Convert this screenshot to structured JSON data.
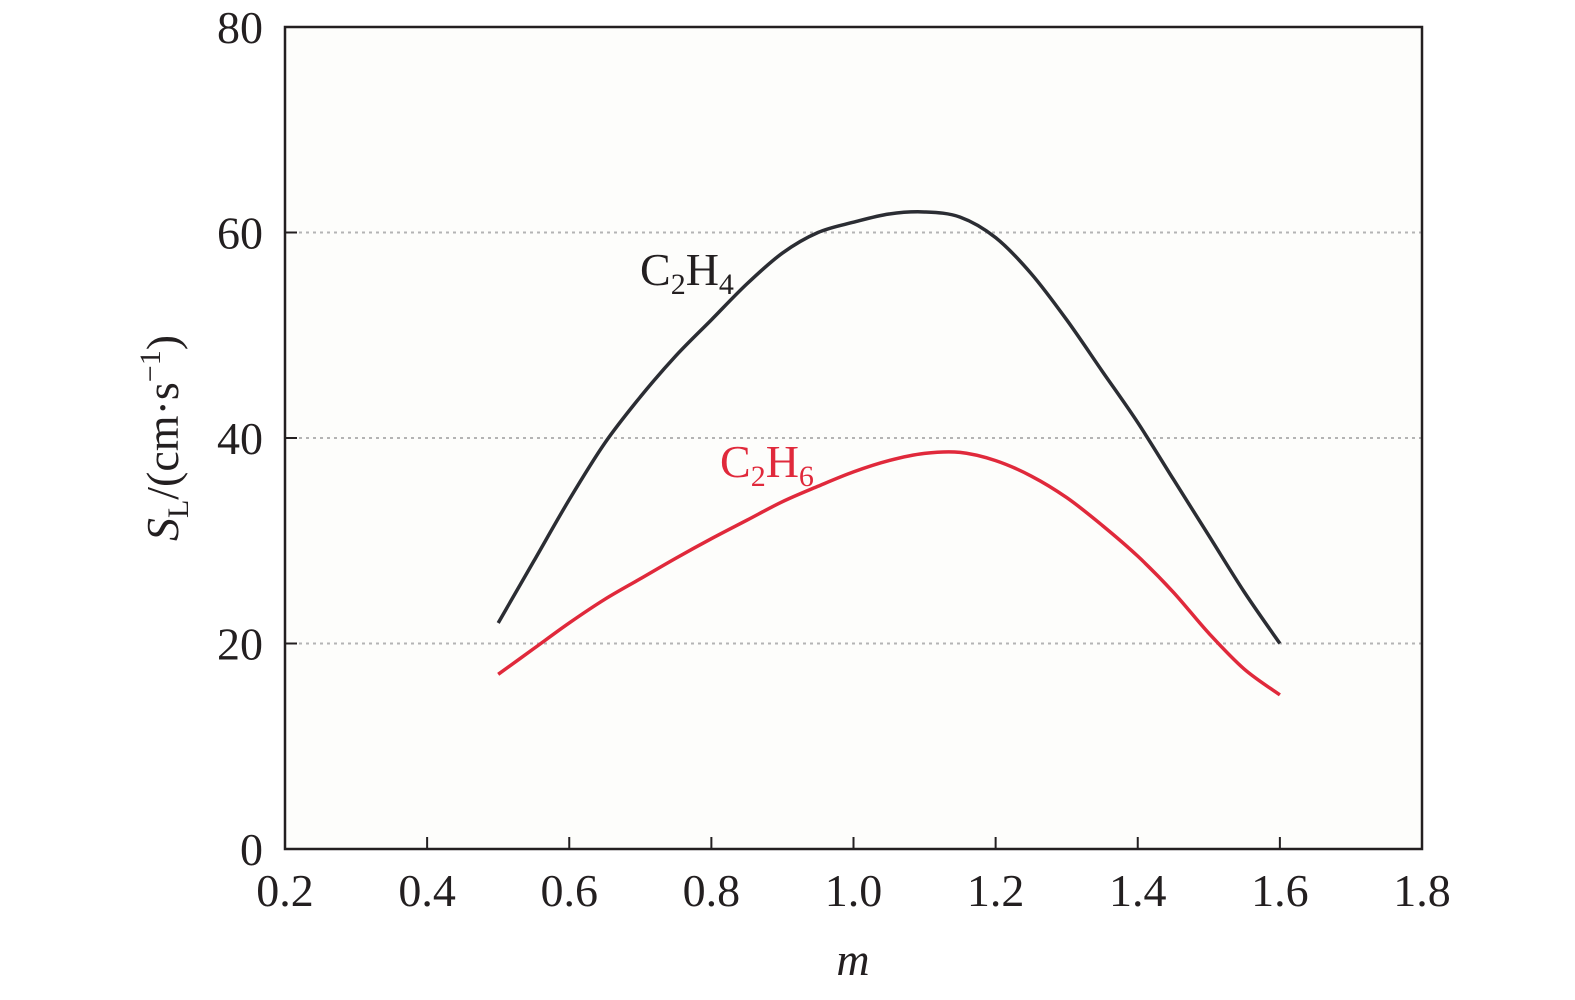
{
  "chart_data": {
    "type": "line",
    "xlabel": "m",
    "ylabel": {
      "symbol": "S",
      "subscript": "L",
      "units": "/(cm·s",
      "superscript": "−1",
      "close": ")"
    },
    "xlim": [
      0.2,
      1.8
    ],
    "ylim": [
      0,
      80
    ],
    "x_ticks": [
      "0.2",
      "0.4",
      "0.6",
      "0.8",
      "1.0",
      "1.2",
      "1.4",
      "1.6",
      "1.8"
    ],
    "y_ticks": [
      "0",
      "20",
      "40",
      "60",
      "80"
    ],
    "grid": "horizontal dotted at 20, 40, 60",
    "background": "#fdfdfb",
    "series": [
      {
        "name": "C2H4",
        "label_main": "C",
        "label_sub1": "2",
        "label_h": "H",
        "label_sub2": "4",
        "color": "#2b2d33",
        "x": [
          0.5,
          0.55,
          0.6,
          0.65,
          0.7,
          0.75,
          0.8,
          0.85,
          0.9,
          0.95,
          1.0,
          1.05,
          1.1,
          1.15,
          1.2,
          1.25,
          1.3,
          1.35,
          1.4,
          1.45,
          1.5,
          1.55,
          1.6
        ],
        "y": [
          22.0,
          28.0,
          34.0,
          39.5,
          44.0,
          48.0,
          51.5,
          55.0,
          58.0,
          60.0,
          61.0,
          61.8,
          62.0,
          61.5,
          59.5,
          56.0,
          51.5,
          46.5,
          41.5,
          36.0,
          30.5,
          25.0,
          20.0
        ]
      },
      {
        "name": "C2H6",
        "label_main": "C",
        "label_sub1": "2",
        "label_h": "H",
        "label_sub2": "6",
        "color": "#e0293b",
        "x": [
          0.5,
          0.55,
          0.6,
          0.65,
          0.7,
          0.75,
          0.8,
          0.85,
          0.9,
          0.95,
          1.0,
          1.05,
          1.1,
          1.15,
          1.2,
          1.25,
          1.3,
          1.35,
          1.4,
          1.45,
          1.5,
          1.55,
          1.6
        ],
        "y": [
          17.0,
          19.5,
          22.0,
          24.3,
          26.3,
          28.3,
          30.2,
          32.0,
          33.8,
          35.3,
          36.7,
          37.8,
          38.5,
          38.6,
          37.8,
          36.3,
          34.2,
          31.5,
          28.5,
          25.0,
          21.0,
          17.5,
          15.0
        ]
      }
    ]
  }
}
